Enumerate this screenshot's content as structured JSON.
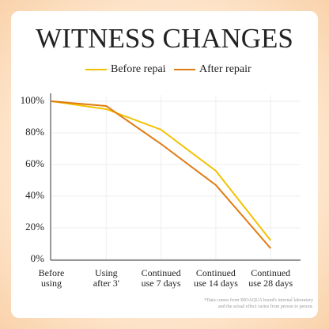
{
  "chart_data": {
    "type": "line",
    "title": "WITNESS CHANGES",
    "categories": [
      "Before\nusing",
      "Using\nafter 3'",
      "Continued\nuse 7 days",
      "Continued\nuse 14 days",
      "Continued\nuse 28 days"
    ],
    "series": [
      {
        "name": "Before repai",
        "color": "#f2c200",
        "values": [
          100,
          95,
          82,
          56,
          12
        ]
      },
      {
        "name": "After repair",
        "color": "#e07b10",
        "values": [
          100,
          97,
          73,
          47,
          7
        ]
      }
    ],
    "ylim": [
      0,
      100
    ],
    "yticks": [
      {
        "value": 0,
        "label": "0%"
      },
      {
        "value": 20,
        "label": "20%"
      },
      {
        "value": 40,
        "label": "40%"
      },
      {
        "value": 60,
        "label": "60%"
      },
      {
        "value": 80,
        "label": "80%"
      },
      {
        "value": 100,
        "label": "100%"
      }
    ],
    "grid": true,
    "footnote": "*Data comes from BIOAQUA brand's internal laboratory\nand the actual effect varies from person to person."
  }
}
